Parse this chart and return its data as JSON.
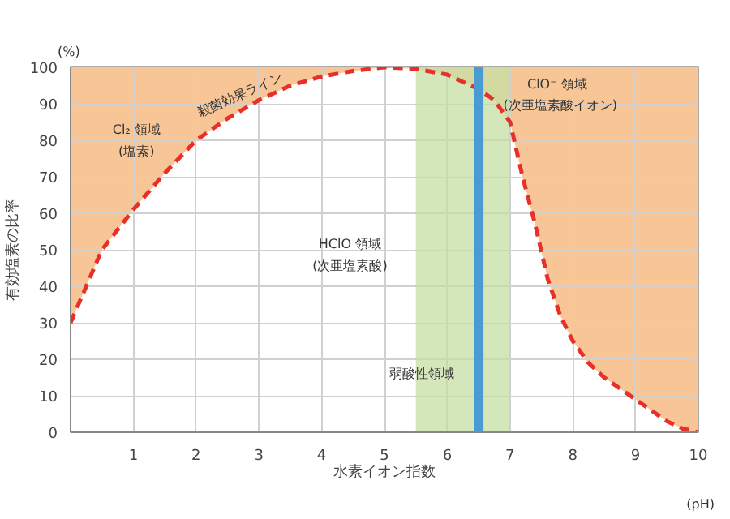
{
  "chart_data": {
    "type": "line",
    "xlabel": "水素イオン指数",
    "ylabel": "有効塩素の比率",
    "x": [
      0,
      0.5,
      1,
      1.5,
      2,
      2.5,
      3,
      3.5,
      4,
      4.5,
      5,
      5.5,
      6,
      6.25,
      6.5,
      6.75,
      7,
      7.2,
      7.4,
      7.6,
      7.8,
      8,
      8.25,
      8.5,
      8.75,
      9,
      9.25,
      9.5,
      9.75,
      10
    ],
    "series": [
      {
        "color": "#e8302a",
        "line_style": "dashed",
        "values": [
          30,
          50,
          61,
          71,
          80,
          86,
          91,
          95,
          97.5,
          99,
          100,
          99.6,
          98,
          96,
          94,
          91,
          85,
          70,
          57,
          42,
          32,
          25,
          19,
          15,
          12,
          9,
          6,
          3,
          1,
          0
        ]
      }
    ],
    "xlim": [
      0,
      10
    ],
    "ylim": [
      0,
      100
    ],
    "xticks": [
      1,
      2,
      3,
      4,
      5,
      6,
      7,
      8,
      9,
      10
    ],
    "yticks": [
      0,
      10,
      20,
      30,
      40,
      50,
      60,
      70,
      80,
      90,
      100
    ],
    "grid": true,
    "bands": [
      {
        "axis": "x",
        "from": 5.5,
        "to": 7,
        "label": "弱酸性領域",
        "color": "#c6dfa4"
      }
    ],
    "ref_lines": [
      {
        "axis": "x",
        "value": 6.5,
        "color": "#4a9bd4"
      }
    ],
    "annotations": [
      "Cl₂ 領域",
      "(塩素)",
      "殺菌効果ライン",
      "HClO 領域",
      "(次亜塩素酸)",
      "ClO⁻ 領域",
      "(次亜塩素酸イオン)",
      "(%)",
      "(pH)"
    ]
  }
}
